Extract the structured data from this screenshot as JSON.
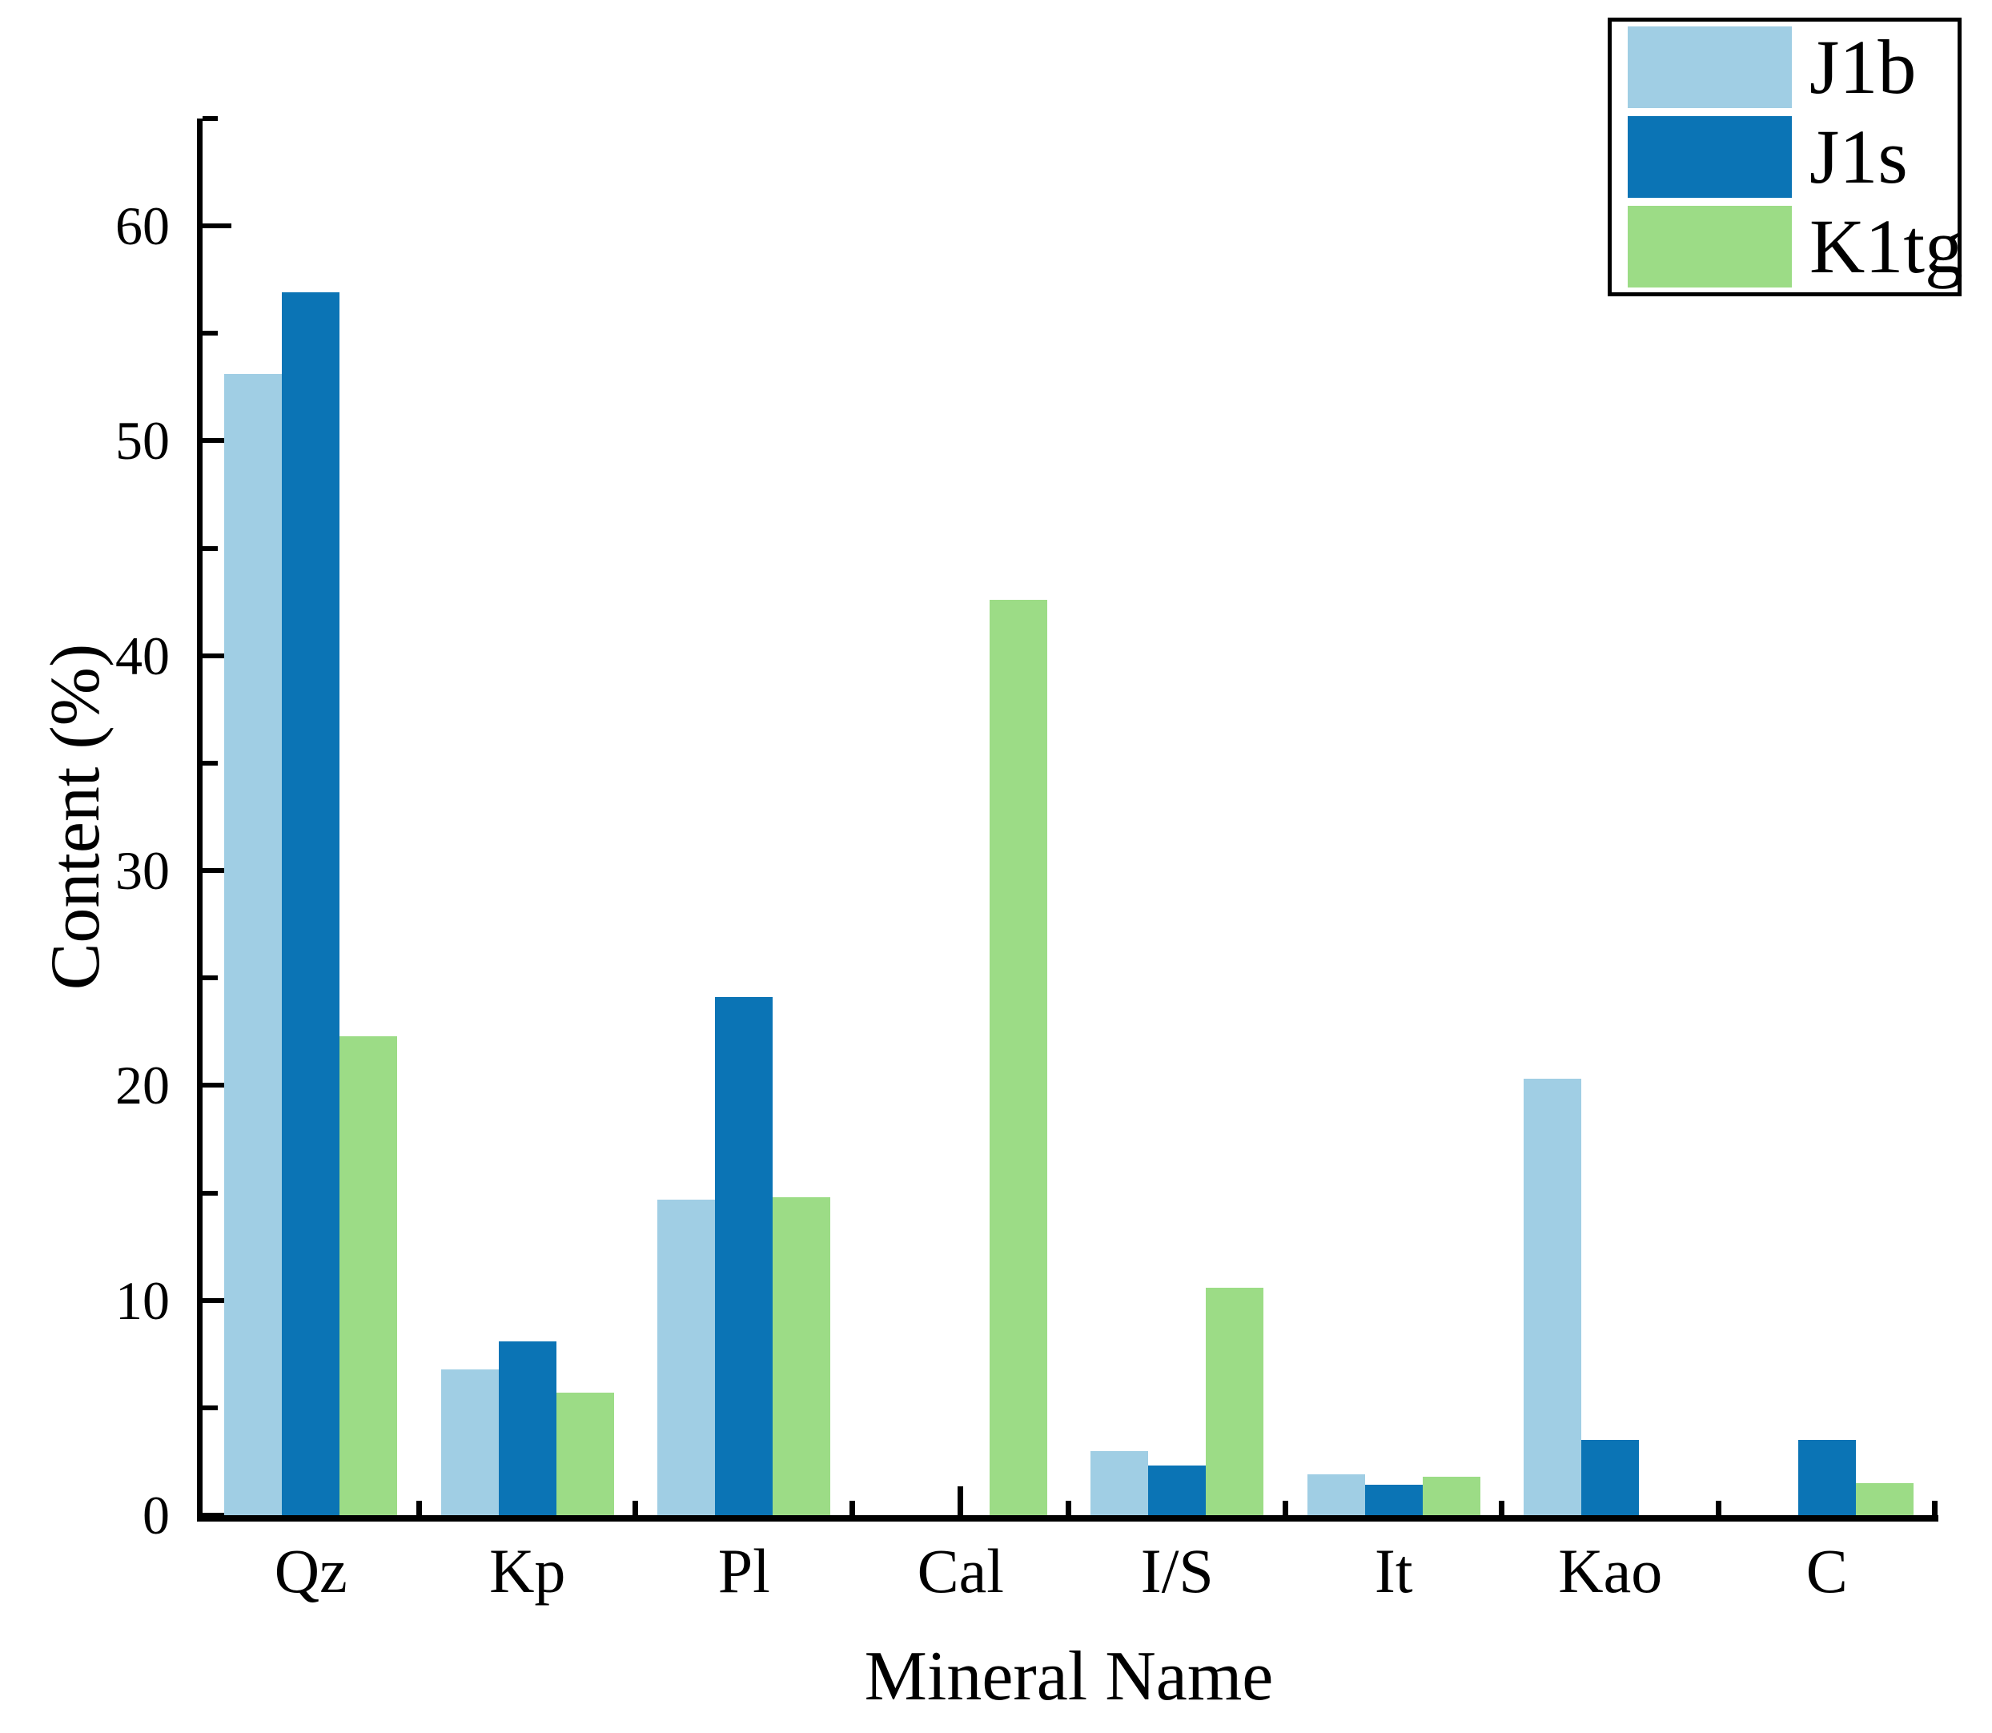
{
  "chart_data": {
    "type": "bar",
    "title": "",
    "xlabel": "Mineral Name",
    "ylabel": "Content (%)",
    "categories": [
      "Qz",
      "Kp",
      "Pl",
      "Cal",
      "I/S",
      "It",
      "Kao",
      "C"
    ],
    "series": [
      {
        "name": "J1b",
        "color": "#a0cee4",
        "values": [
          53.1,
          6.8,
          14.7,
          0,
          3,
          1.9,
          20.3,
          0
        ],
        "labels": [
          "53.1",
          "6.8",
          "14.7",
          "0",
          "3",
          "1.9",
          "20.3",
          "0"
        ]
      },
      {
        "name": "J1s",
        "color": "#0b74b5",
        "values": [
          56.9,
          8.1,
          24.1,
          0,
          2.3,
          1.4,
          3.5,
          3.5
        ],
        "labels": [
          "56.9",
          "8.1",
          "24.1",
          "0",
          "2.3",
          "1.4",
          "3.5",
          "3.5"
        ]
      },
      {
        "name": "K1tg",
        "color": "#9cdc86",
        "values": [
          22.3,
          5.7,
          14.8,
          42.6,
          10.6,
          1.8,
          0,
          1.5
        ],
        "labels": [
          "22.3",
          "5.7",
          "14.8",
          "42.6",
          "10.6",
          "1.8",
          "0",
          "1.5"
        ]
      }
    ],
    "ylim": [
      0,
      65
    ],
    "y_major_ticks": [
      0,
      10,
      20,
      30,
      40,
      50,
      60
    ],
    "y_minor_ticks": [
      5,
      15,
      25,
      35,
      45,
      55,
      65
    ],
    "grid": false,
    "legend_position": "top-right",
    "bar_value_labels_visible": true
  }
}
